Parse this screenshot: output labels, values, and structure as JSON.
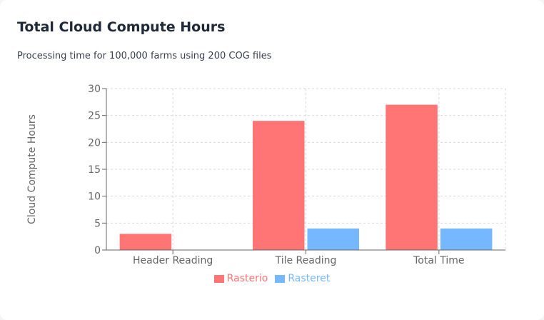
{
  "card": {
    "title": "Total Cloud Compute Hours",
    "subtitle": "Processing time for 100,000 farms using 200 COG files"
  },
  "chart_data": {
    "type": "bar",
    "categories": [
      "Header Reading",
      "Tile Reading",
      "Total Time"
    ],
    "series": [
      {
        "name": "Rasterio",
        "values": [
          3,
          24,
          27
        ],
        "color": "#ff7575"
      },
      {
        "name": "Rasteret",
        "values": [
          0,
          4,
          4
        ],
        "color": "#76b8ff"
      }
    ],
    "ylabel": "Cloud Compute Hours",
    "ylim": [
      0,
      30
    ],
    "yticks": [
      0,
      5,
      10,
      15,
      20,
      25,
      30
    ],
    "grid": true,
    "legend_position": "bottom-center"
  }
}
